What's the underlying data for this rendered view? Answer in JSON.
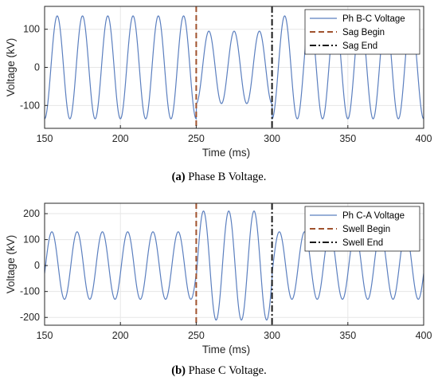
{
  "colors": {
    "signal": "#5b7fbf",
    "begin_line": "#a0522d",
    "end_line": "#1a1a1a",
    "grid": "#e6e6e6",
    "axes": "#262626"
  },
  "chart_data": [
    {
      "type": "line",
      "xlabel": "Time (ms)",
      "ylabel": "Voltage (kV)",
      "xlim": [
        150,
        400
      ],
      "ylim": [
        -160,
        160
      ],
      "xticks": [
        150,
        200,
        250,
        300,
        350,
        400
      ],
      "yticks": [
        -100,
        0,
        100
      ],
      "grid": true,
      "legend_position": "top-right",
      "series": [
        {
          "name": "Ph B-C Voltage",
          "style": "solid",
          "frequency_hz": 60,
          "segments": [
            {
              "t_start": 150,
              "t_end": 250,
              "peak_kv": 135
            },
            {
              "t_start": 250,
              "t_end": 300,
              "peak_kv": 95
            },
            {
              "t_start": 300,
              "t_end": 400,
              "peak_kv": 135
            }
          ]
        },
        {
          "name": "Sag Begin",
          "style": "dashed",
          "x": 250
        },
        {
          "name": "Sag End",
          "style": "dash-dot",
          "x": 300
        }
      ],
      "caption_tag": "(a)",
      "caption_text": "Phase B Voltage."
    },
    {
      "type": "line",
      "xlabel": "Time (ms)",
      "ylabel": "Voltage (kV)",
      "xlim": [
        150,
        400
      ],
      "ylim": [
        -230,
        240
      ],
      "xticks": [
        150,
        200,
        250,
        300,
        350,
        400
      ],
      "yticks": [
        -200,
        -100,
        0,
        100,
        200
      ],
      "grid": true,
      "legend_position": "top-right",
      "series": [
        {
          "name": "Ph C-A Voltage",
          "style": "solid",
          "frequency_hz": 60,
          "segments": [
            {
              "t_start": 150,
              "t_end": 250,
              "peak_kv": 130
            },
            {
              "t_start": 250,
              "t_end": 300,
              "peak_kv": 210
            },
            {
              "t_start": 300,
              "t_end": 400,
              "peak_kv": 130
            }
          ]
        },
        {
          "name": "Swell Begin",
          "style": "dashed",
          "x": 250
        },
        {
          "name": "Swell End",
          "style": "dash-dot",
          "x": 300
        }
      ],
      "caption_tag": "(b)",
      "caption_text": "Phase C Voltage."
    }
  ]
}
